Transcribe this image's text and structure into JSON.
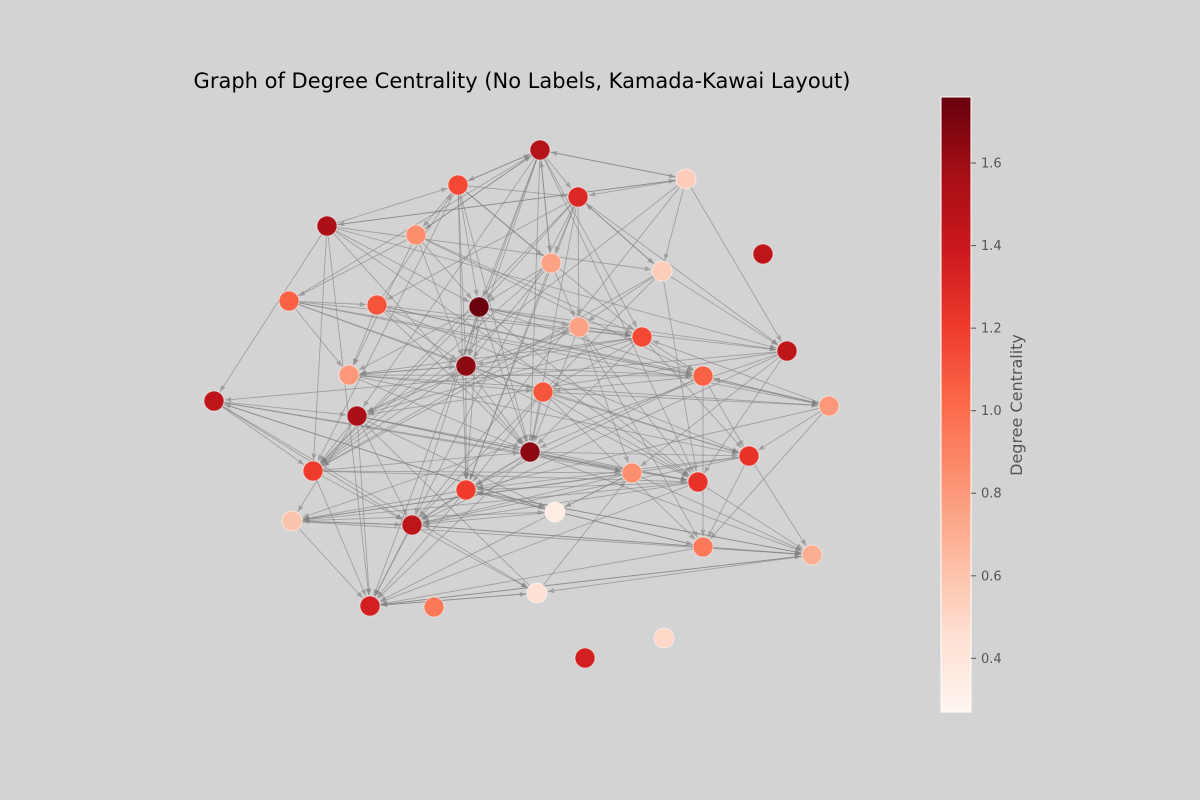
{
  "title": "Graph of Degree Centrality (No Labels, Kamada-Kawai Layout)",
  "colorbar": {
    "label": "Degree Centrality",
    "ticks": [
      "0.4",
      "0.6",
      "0.8",
      "1.0",
      "1.2",
      "1.4",
      "1.6"
    ],
    "tick_values": [
      0.4,
      0.6,
      0.8,
      1.0,
      1.2,
      1.4,
      1.6
    ],
    "range": [
      0.27,
      1.76
    ],
    "colormap": "Reds"
  },
  "graph": {
    "directed": true,
    "edge_color": "#7f7f7f",
    "nodes": [
      {
        "id": 0,
        "c": 1.5
      },
      {
        "id": 1,
        "c": 1.15
      },
      {
        "id": 2,
        "c": 0.55
      },
      {
        "id": 3,
        "c": 1.3
      },
      {
        "id": 4,
        "c": 1.55
      },
      {
        "id": 5,
        "c": 0.85
      },
      {
        "id": 6,
        "c": 0.75
      },
      {
        "id": 7,
        "c": 0.55
      },
      {
        "id": 8,
        "c": 1.05
      },
      {
        "id": 9,
        "c": 1.1
      },
      {
        "id": 10,
        "c": 1.75
      },
      {
        "id": 11,
        "c": 0.75
      },
      {
        "id": 12,
        "c": 1.15
      },
      {
        "id": 13,
        "c": 1.45
      },
      {
        "id": 14,
        "c": 1.65
      },
      {
        "id": 15,
        "c": 0.8
      },
      {
        "id": 16,
        "c": 1.45
      },
      {
        "id": 17,
        "c": 1.05
      },
      {
        "id": 18,
        "c": 1.1
      },
      {
        "id": 19,
        "c": 0.8
      },
      {
        "id": 20,
        "c": 1.55
      },
      {
        "id": 21,
        "c": 1.2
      },
      {
        "id": 22,
        "c": 1.65
      },
      {
        "id": 23,
        "c": 1.25
      },
      {
        "id": 24,
        "c": 0.85
      },
      {
        "id": 25,
        "c": 1.25
      },
      {
        "id": 26,
        "c": 1.2
      },
      {
        "id": 27,
        "c": 0.6
      },
      {
        "id": 28,
        "c": 0.35
      },
      {
        "id": 29,
        "c": 1.45
      },
      {
        "id": 30,
        "c": 0.95
      },
      {
        "id": 31,
        "c": 0.7
      },
      {
        "id": 32,
        "c": 0.45
      },
      {
        "id": 33,
        "c": 1.35
      }
    ],
    "edges": [
      [
        0,
        1
      ],
      [
        0,
        3
      ],
      [
        0,
        10
      ],
      [
        0,
        14
      ],
      [
        0,
        22
      ],
      [
        0,
        5
      ],
      [
        0,
        12
      ],
      [
        0,
        25
      ],
      [
        0,
        33
      ],
      [
        0,
        20
      ],
      [
        0,
        6
      ],
      [
        0,
        2
      ],
      [
        1,
        5
      ],
      [
        1,
        3
      ],
      [
        1,
        10
      ],
      [
        1,
        21
      ],
      [
        1,
        6
      ],
      [
        1,
        0
      ],
      [
        1,
        12
      ],
      [
        1,
        22
      ],
      [
        1,
        26
      ],
      [
        1,
        14
      ],
      [
        2,
        4
      ],
      [
        2,
        7
      ],
      [
        2,
        13
      ],
      [
        2,
        29
      ],
      [
        2,
        3
      ],
      [
        2,
        21
      ],
      [
        2,
        0
      ],
      [
        3,
        13
      ],
      [
        3,
        6
      ],
      [
        3,
        7
      ],
      [
        3,
        10
      ],
      [
        3,
        21
      ],
      [
        3,
        22
      ],
      [
        3,
        11
      ],
      [
        3,
        33
      ],
      [
        3,
        26
      ],
      [
        3,
        9
      ],
      [
        4,
        16
      ],
      [
        4,
        13
      ],
      [
        4,
        7
      ],
      [
        4,
        2
      ],
      [
        4,
        21
      ],
      [
        4,
        22
      ],
      [
        4,
        25
      ],
      [
        4,
        33
      ],
      [
        4,
        10
      ],
      [
        4,
        1
      ],
      [
        5,
        12
      ],
      [
        5,
        10
      ],
      [
        5,
        8
      ],
      [
        5,
        14
      ],
      [
        5,
        0
      ],
      [
        5,
        15
      ],
      [
        5,
        17
      ],
      [
        6,
        10
      ],
      [
        6,
        11
      ],
      [
        6,
        21
      ],
      [
        6,
        14
      ],
      [
        6,
        26
      ],
      [
        6,
        0
      ],
      [
        7,
        21
      ],
      [
        7,
        13
      ],
      [
        7,
        11
      ],
      [
        7,
        25
      ],
      [
        7,
        29
      ],
      [
        7,
        3
      ],
      [
        8,
        9
      ],
      [
        8,
        12
      ],
      [
        8,
        15
      ],
      [
        8,
        18
      ],
      [
        8,
        19
      ],
      [
        8,
        14
      ],
      [
        8,
        17
      ],
      [
        8,
        0
      ],
      [
        9,
        15
      ],
      [
        9,
        12
      ],
      [
        9,
        14
      ],
      [
        9,
        17
      ],
      [
        9,
        19
      ],
      [
        9,
        22
      ],
      [
        9,
        1
      ],
      [
        9,
        23
      ],
      [
        10,
        14
      ],
      [
        10,
        12
      ],
      [
        10,
        21
      ],
      [
        10,
        22
      ],
      [
        10,
        25
      ],
      [
        10,
        13
      ],
      [
        10,
        11
      ],
      [
        10,
        15
      ],
      [
        10,
        26
      ],
      [
        10,
        17
      ],
      [
        10,
        29
      ],
      [
        11,
        22
      ],
      [
        11,
        13
      ],
      [
        11,
        21
      ],
      [
        11,
        25
      ],
      [
        11,
        24
      ],
      [
        11,
        20
      ],
      [
        11,
        30
      ],
      [
        12,
        14
      ],
      [
        12,
        15
      ],
      [
        12,
        17
      ],
      [
        12,
        18
      ],
      [
        12,
        23
      ],
      [
        12,
        22
      ],
      [
        12,
        20
      ],
      [
        13,
        16
      ],
      [
        13,
        25
      ],
      [
        13,
        29
      ],
      [
        13,
        20
      ],
      [
        13,
        27
      ],
      [
        13,
        24
      ],
      [
        14,
        22
      ],
      [
        14,
        15
      ],
      [
        14,
        23
      ],
      [
        14,
        17
      ],
      [
        14,
        20
      ],
      [
        14,
        25
      ],
      [
        14,
        11
      ],
      [
        14,
        26
      ],
      [
        15,
        17
      ],
      [
        15,
        18
      ],
      [
        15,
        23
      ],
      [
        15,
        14
      ],
      [
        15,
        19
      ],
      [
        15,
        22
      ],
      [
        16,
        29
      ],
      [
        16,
        20
      ],
      [
        16,
        24
      ],
      [
        16,
        25
      ],
      [
        16,
        28
      ],
      [
        16,
        21
      ],
      [
        16,
        32
      ],
      [
        17,
        18
      ],
      [
        17,
        19
      ],
      [
        17,
        23
      ],
      [
        17,
        26
      ],
      [
        17,
        22
      ],
      [
        17,
        30
      ],
      [
        18,
        19
      ],
      [
        18,
        23
      ],
      [
        18,
        25
      ],
      [
        18,
        26
      ],
      [
        18,
        30
      ],
      [
        18,
        22
      ],
      [
        19,
        23
      ],
      [
        19,
        30
      ],
      [
        19,
        26
      ],
      [
        19,
        12
      ],
      [
        19,
        17
      ],
      [
        20,
        29
      ],
      [
        20,
        25
      ],
      [
        20,
        28
      ],
      [
        20,
        27
      ],
      [
        20,
        24
      ],
      [
        20,
        33
      ],
      [
        20,
        22
      ],
      [
        20,
        21
      ],
      [
        21,
        25
      ],
      [
        21,
        22
      ],
      [
        21,
        24
      ],
      [
        21,
        14
      ],
      [
        21,
        29
      ],
      [
        21,
        33
      ],
      [
        22,
        23
      ],
      [
        22,
        25
      ],
      [
        22,
        26
      ],
      [
        22,
        24
      ],
      [
        22,
        31
      ],
      [
        22,
        33
      ],
      [
        22,
        29
      ],
      [
        23,
        26
      ],
      [
        23,
        30
      ],
      [
        23,
        31
      ],
      [
        23,
        29
      ],
      [
        23,
        27
      ],
      [
        24,
        29
      ],
      [
        24,
        27
      ],
      [
        24,
        28
      ],
      [
        24,
        33
      ],
      [
        24,
        31
      ],
      [
        25,
        29
      ],
      [
        25,
        26
      ],
      [
        25,
        33
      ],
      [
        25,
        27
      ],
      [
        25,
        31
      ],
      [
        26,
        30
      ],
      [
        26,
        31
      ],
      [
        26,
        33
      ],
      [
        26,
        29
      ],
      [
        26,
        27
      ],
      [
        27,
        29
      ],
      [
        27,
        28
      ],
      [
        27,
        33
      ],
      [
        27,
        31
      ],
      [
        28,
        16
      ],
      [
        28,
        29
      ],
      [
        29,
        33
      ],
      [
        29,
        32
      ],
      [
        29,
        27
      ],
      [
        29,
        31
      ],
      [
        30,
        31
      ],
      [
        30,
        33
      ],
      [
        30,
        26
      ],
      [
        30,
        29
      ],
      [
        31,
        33
      ],
      [
        31,
        32
      ],
      [
        31,
        26
      ],
      [
        32,
        33
      ],
      [
        32,
        20
      ],
      [
        32,
        24
      ],
      [
        33,
        32
      ],
      [
        33,
        31
      ]
    ]
  }
}
